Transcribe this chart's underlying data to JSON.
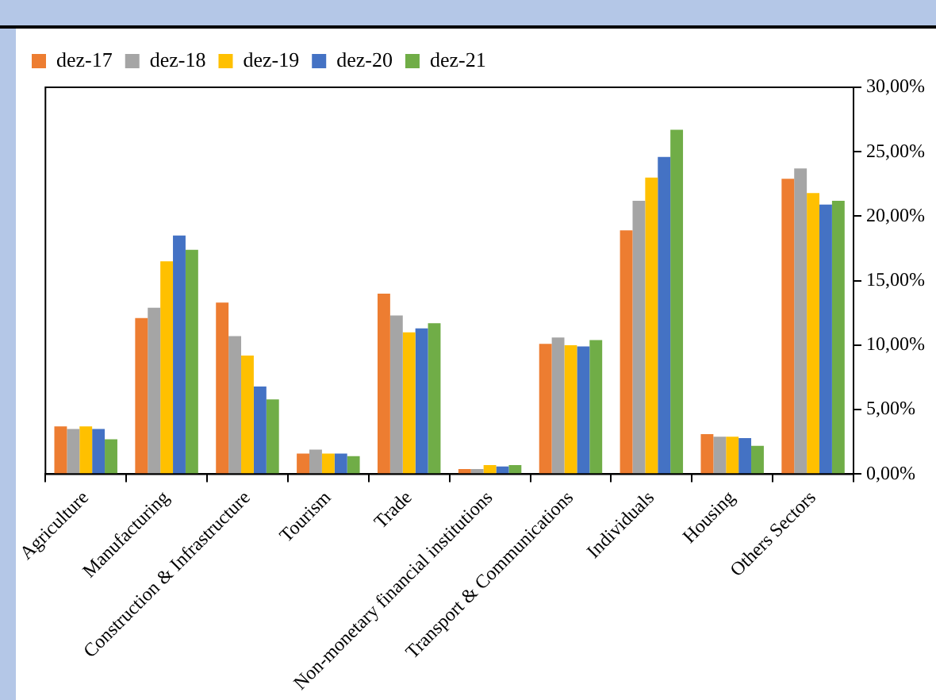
{
  "chart_data": {
    "type": "bar",
    "categories": [
      "Agriculture",
      "Manufacturing",
      "Construction & Infrastructure",
      "Tourism",
      "Trade",
      "Non-monetary financial institutions",
      "Transport & Communications",
      "Individuals",
      "Housing",
      "Others Sectors"
    ],
    "series": [
      {
        "name": "dez-17",
        "color": "#ed7d31",
        "values": [
          3.7,
          12.1,
          13.3,
          1.6,
          14.0,
          0.4,
          10.1,
          18.9,
          3.1,
          22.9
        ]
      },
      {
        "name": "dez-18",
        "color": "#a5a5a5",
        "values": [
          3.5,
          12.9,
          10.7,
          1.9,
          12.3,
          0.4,
          10.6,
          21.2,
          2.9,
          23.7
        ]
      },
      {
        "name": "dez-19",
        "color": "#ffc000",
        "values": [
          3.7,
          16.5,
          9.2,
          1.6,
          11.0,
          0.7,
          10.0,
          23.0,
          2.9,
          21.8
        ]
      },
      {
        "name": "dez-20",
        "color": "#4472c4",
        "values": [
          3.5,
          18.5,
          6.8,
          1.6,
          11.3,
          0.6,
          9.9,
          24.6,
          2.8,
          20.9
        ]
      },
      {
        "name": "dez-21",
        "color": "#70ad47",
        "values": [
          2.7,
          17.4,
          5.8,
          1.4,
          11.7,
          0.7,
          10.4,
          26.7,
          2.2,
          21.2
        ]
      }
    ],
    "ylim": [
      0,
      30
    ],
    "yticks": [
      {
        "value": 0,
        "label": "0,00%"
      },
      {
        "value": 5,
        "label": "5,00%"
      },
      {
        "value": 10,
        "label": "10,00%"
      },
      {
        "value": 15,
        "label": "15,00%"
      },
      {
        "value": 20,
        "label": "20,00%"
      },
      {
        "value": 25,
        "label": "25,00%"
      },
      {
        "value": 30,
        "label": "30,00%"
      }
    ],
    "grid": false,
    "legend": "top left"
  }
}
